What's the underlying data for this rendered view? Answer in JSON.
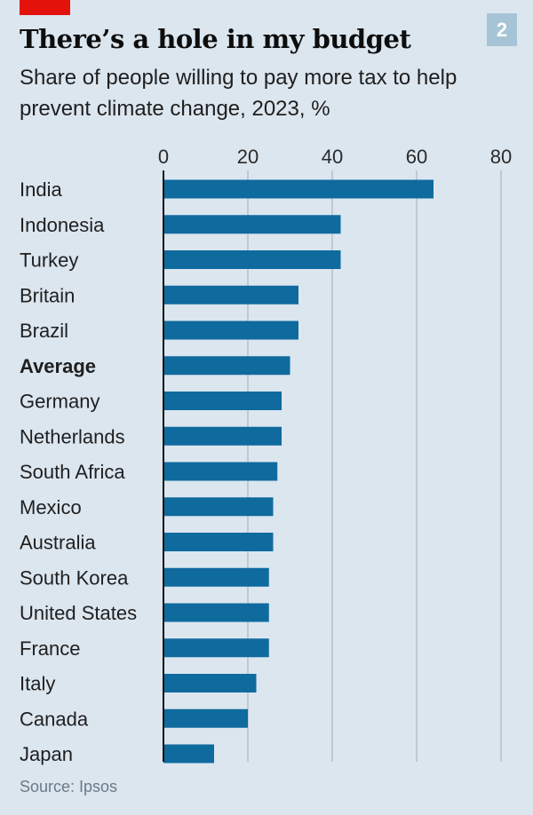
{
  "header": {
    "title": "There’s a hole in my budget",
    "subtitle": "Share of people willing to pay more tax to help prevent climate change, 2023, %",
    "chart_number": "2"
  },
  "footer": {
    "source": "Source: Ipsos"
  },
  "colors": {
    "bar": "#0f6a9e",
    "background": "#dbe6ef",
    "grid": "#a9b8c3",
    "accent_tag": "#e3120b"
  },
  "chart_data": {
    "type": "bar",
    "orientation": "horizontal",
    "title": "There’s a hole in my budget",
    "subtitle": "Share of people willing to pay more tax to help prevent climate change, 2023, %",
    "xlim": [
      0,
      80
    ],
    "xticks": [
      "0",
      "20",
      "40",
      "60",
      "80"
    ],
    "tick_values": [
      0,
      20,
      40,
      60,
      80
    ],
    "axis_position": "top",
    "grid": true,
    "categories": [
      "India",
      "Indonesia",
      "Turkey",
      "Britain",
      "Brazil",
      "Average",
      "Germany",
      "Netherlands",
      "South Africa",
      "Mexico",
      "Australia",
      "South Korea",
      "United States",
      "France",
      "Italy",
      "Canada",
      "Japan"
    ],
    "values": [
      64,
      42,
      42,
      32,
      32,
      30,
      28,
      28,
      27,
      26,
      26,
      25,
      25,
      25,
      22,
      20,
      12
    ],
    "bold_categories": [
      "Average"
    ]
  }
}
